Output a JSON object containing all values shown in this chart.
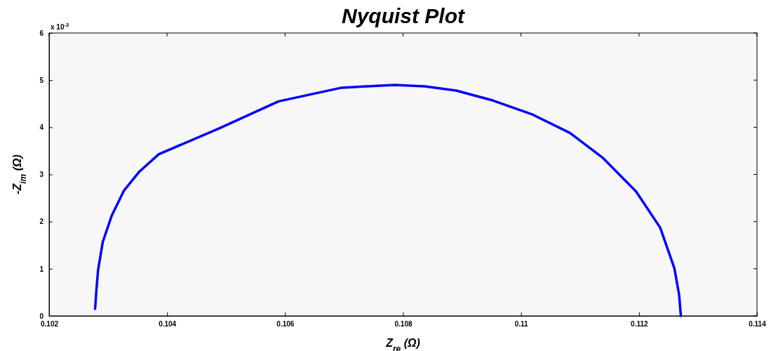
{
  "chart_data": {
    "type": "line",
    "title": "Nyquist Plot",
    "xlabel": "Z$_{re}$ (Ω)",
    "ylabel": "-Z$_{im}$ (Ω)",
    "annotations": [
      "x 10$^{-3}$"
    ],
    "xlim": [
      0.102,
      0.114
    ],
    "xticks": [
      0.102,
      0.104,
      0.106,
      0.108,
      0.11,
      0.112,
      0.114
    ],
    "ylim": [
      0,
      6
    ],
    "yticks": [
      0,
      1,
      2,
      3,
      4,
      5,
      6
    ],
    "grid": false,
    "marker": "none",
    "line_style": "solid",
    "series": [
      {
        "color": "#0000ff",
        "x": [
          0.10278,
          0.1028,
          0.10283,
          0.10291,
          0.10306,
          0.10327,
          0.10353,
          0.10386,
          0.10487,
          0.10589,
          0.10696,
          0.10786,
          0.10837,
          0.1089,
          0.10952,
          0.11018,
          0.11083,
          0.11138,
          0.11195,
          0.11236,
          0.1126,
          0.11268,
          0.11271
        ],
        "values": [
          0.15,
          0.52,
          0.97,
          1.57,
          2.12,
          2.66,
          3.06,
          3.43,
          3.97,
          4.55,
          4.84,
          4.9,
          4.87,
          4.78,
          4.57,
          4.28,
          3.88,
          3.36,
          2.64,
          1.87,
          1.01,
          0.45,
          0
        ]
      }
    ]
  }
}
